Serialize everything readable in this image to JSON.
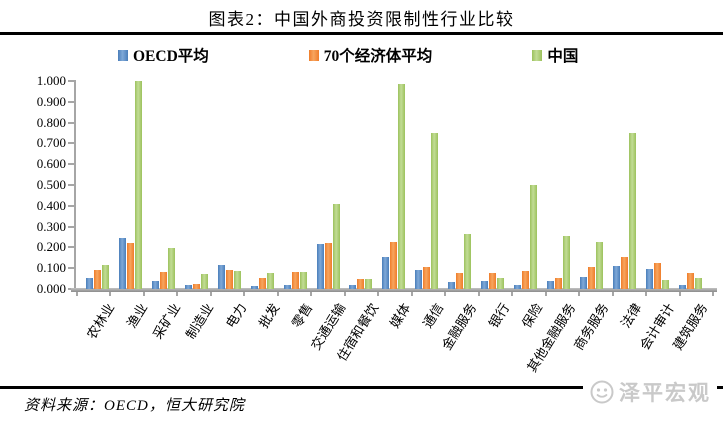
{
  "title": "图表2：中国外商投资限制性行业比较",
  "source_note": "资料来源：OECD，恒大研究院",
  "watermark_text": "泽平宏观",
  "colors": {
    "rule": "#000000",
    "axis": "#a6a6a6",
    "watermark": "#c9c9c9"
  },
  "chart_data": {
    "type": "bar",
    "title": "图表2：中国外商投资限制性行业比较",
    "xlabel": "",
    "ylabel": "",
    "ylim": [
      0,
      1.0
    ],
    "ytick_step": 0.1,
    "yticks": [
      "0.000",
      "0.100",
      "0.200",
      "0.300",
      "0.400",
      "0.500",
      "0.600",
      "0.700",
      "0.800",
      "0.900",
      "1.000"
    ],
    "grid": false,
    "legend_position": "top",
    "categories": [
      "农林业",
      "渔业",
      "采矿业",
      "制造业",
      "电力",
      "批发",
      "零售",
      "交通运输",
      "住宿和餐饮",
      "媒体",
      "通信",
      "金融服务",
      "银行",
      "保险",
      "其他金融服务",
      "商务服务",
      "法律",
      "会计审计",
      "建筑服务"
    ],
    "series": [
      {
        "name": "OECD平均",
        "color": "#4a7eba",
        "color_light": "#7fa9d8",
        "values": [
          0.055,
          0.245,
          0.04,
          0.02,
          0.115,
          0.015,
          0.02,
          0.215,
          0.02,
          0.155,
          0.09,
          0.035,
          0.04,
          0.02,
          0.04,
          0.06,
          0.11,
          0.095,
          0.02
        ]
      },
      {
        "name": "70个经济体平均",
        "color": "#ef7d2a",
        "color_light": "#f7a55f",
        "values": [
          0.09,
          0.22,
          0.08,
          0.025,
          0.09,
          0.055,
          0.08,
          0.22,
          0.05,
          0.225,
          0.105,
          0.075,
          0.075,
          0.085,
          0.055,
          0.105,
          0.155,
          0.125,
          0.075
        ]
      },
      {
        "name": "中国",
        "color": "#9cc25d",
        "color_light": "#c2dc95",
        "values": [
          0.115,
          1.0,
          0.195,
          0.07,
          0.085,
          0.075,
          0.08,
          0.41,
          0.05,
          0.985,
          0.75,
          0.265,
          0.055,
          0.5,
          0.255,
          0.225,
          0.75,
          0.045,
          0.055
        ]
      }
    ]
  }
}
